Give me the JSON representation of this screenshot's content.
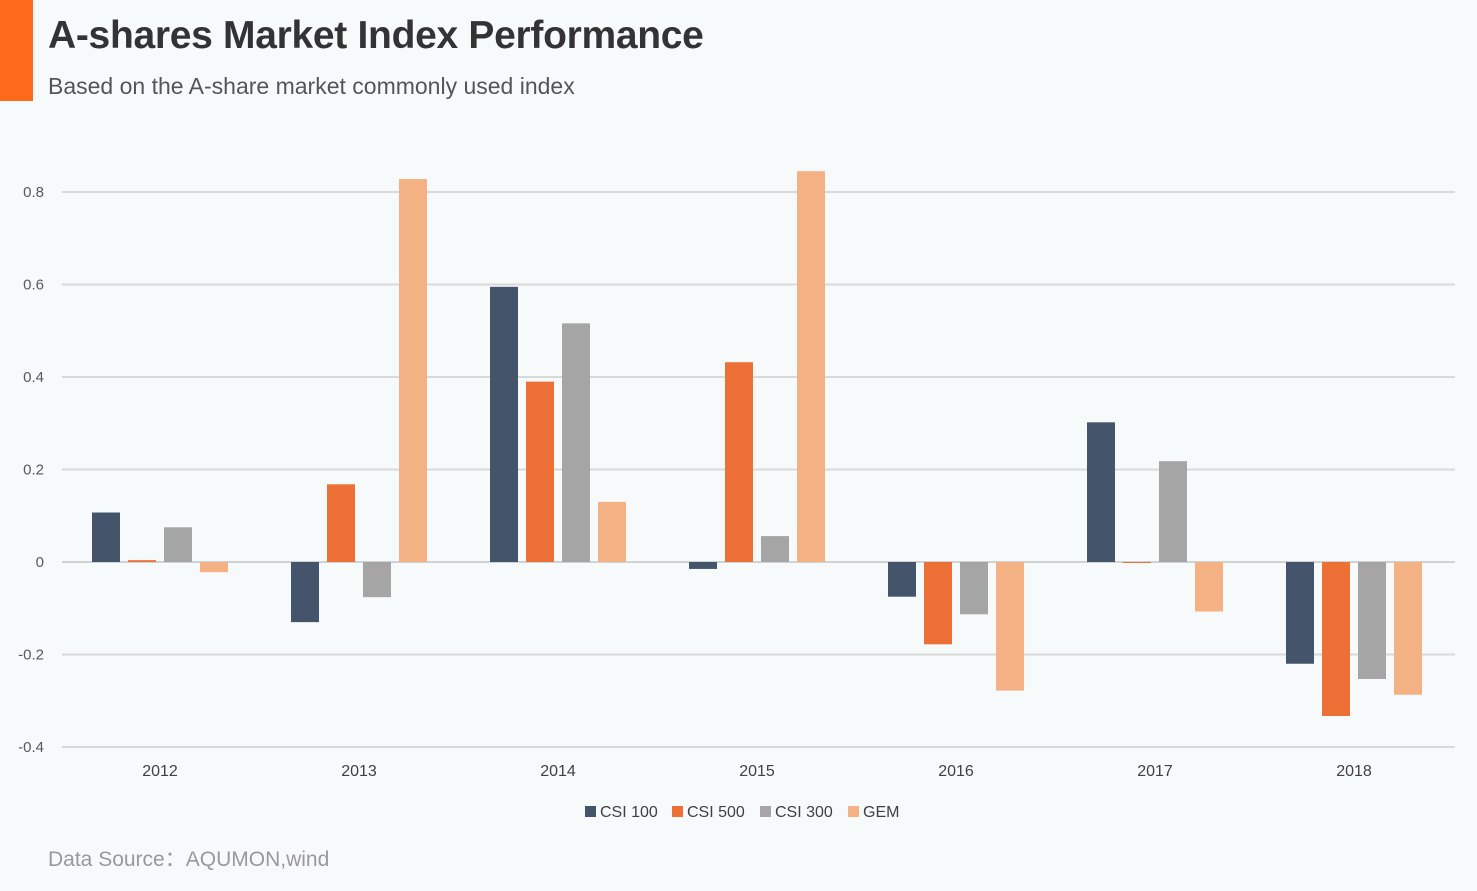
{
  "header": {
    "title": "A-shares Market Index Performance",
    "subtitle": "Based on the A-share market commonly used index",
    "accent_color": "#ff6a1a"
  },
  "footer": {
    "source": "Data Source：AQUMON,wind"
  },
  "chart_data": {
    "type": "bar",
    "categories": [
      "2012",
      "2013",
      "2014",
      "2015",
      "2016",
      "2017",
      "2018"
    ],
    "series": [
      {
        "name": "CSI 100",
        "color": "#44546a",
        "values": [
          0.107,
          -0.13,
          0.595,
          -0.015,
          -0.075,
          0.302,
          -0.22
        ]
      },
      {
        "name": "CSI 500",
        "color": "#ed7137",
        "values": [
          0.004,
          0.168,
          0.39,
          0.432,
          -0.178,
          -0.002,
          -0.333
        ]
      },
      {
        "name": "CSI 300",
        "color": "#a5a5a5",
        "values": [
          0.075,
          -0.076,
          0.516,
          0.056,
          -0.113,
          0.218,
          -0.253
        ]
      },
      {
        "name": "GEM",
        "color": "#f4b183",
        "values": [
          -0.022,
          0.828,
          0.13,
          0.845,
          -0.278,
          -0.107,
          -0.287
        ]
      }
    ],
    "yticks": [
      0.8,
      0.6,
      0.4,
      0.2,
      0,
      -0.2,
      -0.4
    ],
    "ylim": [
      -0.4,
      0.8
    ],
    "grid": true,
    "legend_position": "bottom"
  }
}
